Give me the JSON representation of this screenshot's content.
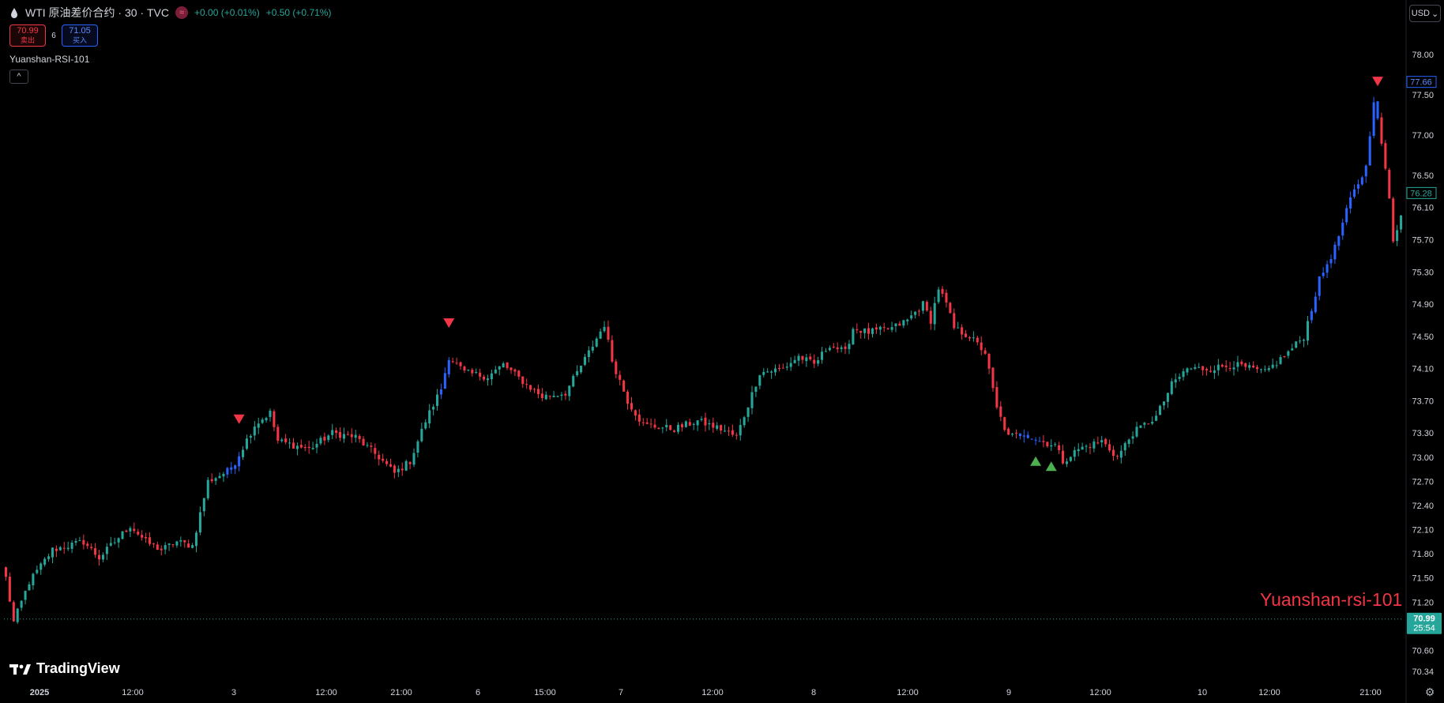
{
  "header": {
    "symbol_title": "WTI 原油差价合约 · 30 · TVC",
    "market_icon": "market-status-icon",
    "change_1": "+0.00 (+0.01%)",
    "change_2": "+0.50 (+0.71%)"
  },
  "trade": {
    "sell_price": "70.99",
    "sell_label": "卖出",
    "spread": "6",
    "buy_price": "71.05",
    "buy_label": "买入"
  },
  "indicator": {
    "name": "Yuanshan-RSI-101",
    "collapse_icon": "chevron-up-icon"
  },
  "currency": {
    "label": "USD"
  },
  "watermark": "Yuanshan-rsi-101",
  "logo": {
    "text": "TradingView"
  },
  "colors": {
    "up": "#26a69a",
    "down": "#f23645",
    "signal": "#2962ff",
    "bg": "#000000",
    "axis_text": "#d1d4dc"
  },
  "chart_data": {
    "type": "candlestick",
    "y_axis": {
      "ticks": [
        "78.00",
        "77.50",
        "77.00",
        "76.50",
        "76.10",
        "75.70",
        "75.30",
        "74.90",
        "74.50",
        "74.10",
        "73.70",
        "73.30",
        "73.00",
        "72.70",
        "72.40",
        "72.10",
        "71.80",
        "71.50",
        "71.20",
        "70.60",
        "70.34"
      ],
      "ylim": [
        70.2,
        78.2
      ]
    },
    "x_axis": {
      "ticks": [
        {
          "label": "2025",
          "bold": true
        },
        {
          "label": "12:00"
        },
        {
          "label": "3"
        },
        {
          "label": "12:00"
        },
        {
          "label": "21:00"
        },
        {
          "label": "6"
        },
        {
          "label": "15:00"
        },
        {
          "label": "7"
        },
        {
          "label": "12:00"
        },
        {
          "label": "8"
        },
        {
          "label": "12:00"
        },
        {
          "label": "9"
        },
        {
          "label": "12:00"
        },
        {
          "label": "10"
        },
        {
          "label": "12:00"
        },
        {
          "label": "21:00"
        }
      ]
    },
    "price_labels": {
      "high_marker": "77.66",
      "last_close": "76.28",
      "current_price": "70.99",
      "countdown": "25:54"
    },
    "current_price_value": 70.99,
    "anchors": [
      [
        0,
        71.5
      ],
      [
        2,
        70.95
      ],
      [
        6,
        71.45
      ],
      [
        12,
        71.85
      ],
      [
        20,
        71.95
      ],
      [
        24,
        71.75
      ],
      [
        32,
        72.15
      ],
      [
        36,
        71.95
      ],
      [
        40,
        71.85
      ],
      [
        44,
        71.95
      ],
      [
        48,
        71.9
      ],
      [
        52,
        72.7
      ],
      [
        58,
        72.85
      ],
      [
        64,
        73.4
      ],
      [
        68,
        73.55
      ],
      [
        70,
        73.2
      ],
      [
        78,
        73.1
      ],
      [
        84,
        73.3
      ],
      [
        90,
        73.25
      ],
      [
        96,
        73.0
      ],
      [
        100,
        72.8
      ],
      [
        104,
        72.95
      ],
      [
        108,
        73.45
      ],
      [
        112,
        73.85
      ],
      [
        114,
        74.25
      ],
      [
        118,
        74.05
      ],
      [
        124,
        74.0
      ],
      [
        128,
        74.15
      ],
      [
        134,
        73.9
      ],
      [
        138,
        73.75
      ],
      [
        144,
        73.8
      ],
      [
        150,
        74.3
      ],
      [
        154,
        74.65
      ],
      [
        156,
        74.2
      ],
      [
        160,
        73.7
      ],
      [
        164,
        73.4
      ],
      [
        172,
        73.35
      ],
      [
        178,
        73.45
      ],
      [
        184,
        73.35
      ],
      [
        188,
        73.25
      ],
      [
        194,
        74.05
      ],
      [
        200,
        74.1
      ],
      [
        204,
        74.25
      ],
      [
        208,
        74.15
      ],
      [
        212,
        74.4
      ],
      [
        216,
        74.3
      ],
      [
        218,
        74.6
      ],
      [
        222,
        74.55
      ],
      [
        228,
        74.6
      ],
      [
        232,
        74.7
      ],
      [
        236,
        74.9
      ],
      [
        238,
        74.7
      ],
      [
        240,
        75.1
      ],
      [
        242,
        74.9
      ],
      [
        244,
        74.6
      ],
      [
        248,
        74.5
      ],
      [
        252,
        74.3
      ],
      [
        255,
        73.6
      ],
      [
        258,
        73.25
      ],
      [
        262,
        73.3
      ],
      [
        266,
        73.2
      ],
      [
        270,
        73.15
      ],
      [
        272,
        72.95
      ],
      [
        276,
        73.1
      ],
      [
        282,
        73.2
      ],
      [
        286,
        73.0
      ],
      [
        290,
        73.3
      ],
      [
        296,
        73.5
      ],
      [
        300,
        73.9
      ],
      [
        304,
        74.1
      ],
      [
        310,
        74.1
      ],
      [
        316,
        74.15
      ],
      [
        320,
        74.1
      ],
      [
        324,
        74.05
      ],
      [
        330,
        74.3
      ],
      [
        334,
        74.5
      ],
      [
        338,
        75.2
      ],
      [
        342,
        75.6
      ],
      [
        346,
        76.2
      ],
      [
        350,
        76.6
      ],
      [
        352,
        77.45
      ],
      [
        354,
        76.9
      ],
      [
        356,
        76.2
      ],
      [
        357,
        75.7
      ],
      [
        359,
        76.0
      ]
    ],
    "candle_count": 360,
    "signals": [
      {
        "type": "sell",
        "index": 60
      },
      {
        "type": "sell",
        "index": 114
      },
      {
        "type": "buy",
        "index": 265
      },
      {
        "type": "buy",
        "index": 269
      },
      {
        "type": "sell",
        "index": 353
      }
    ],
    "blue_ranges": [
      [
        57,
        60
      ],
      [
        112,
        114
      ],
      [
        261,
        266
      ],
      [
        336,
        353
      ]
    ]
  }
}
